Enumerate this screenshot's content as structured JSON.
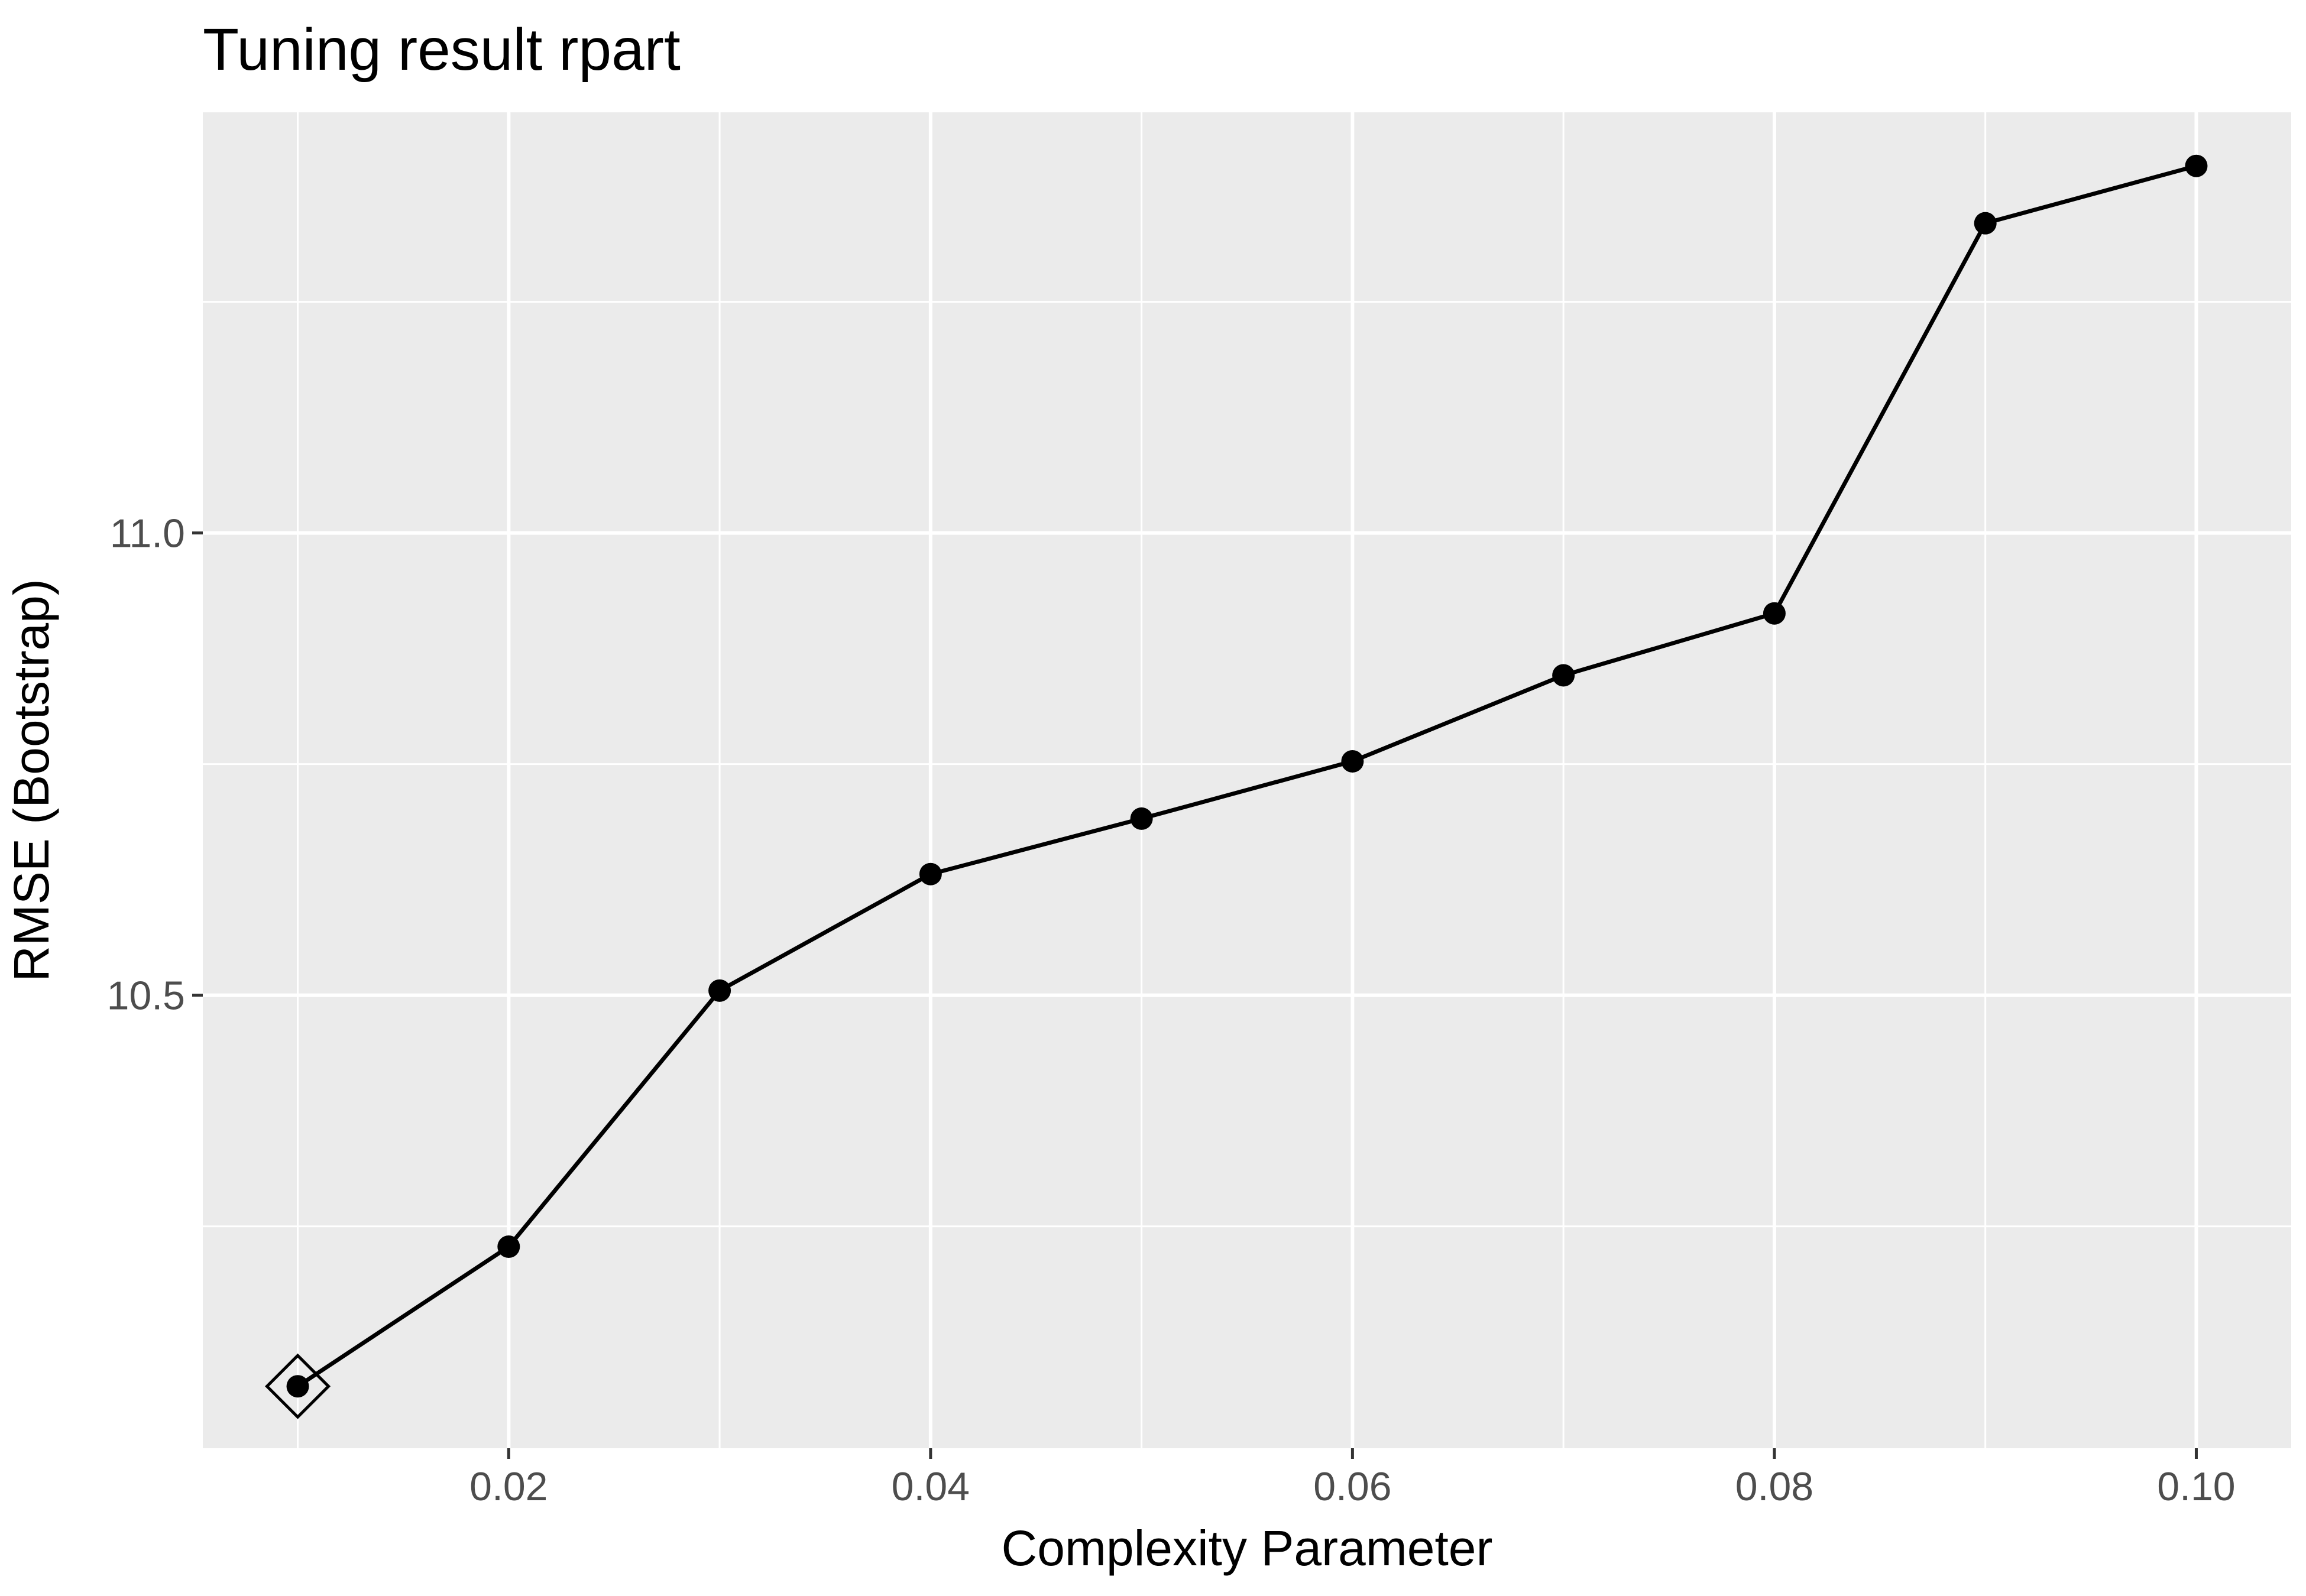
{
  "chart_data": {
    "type": "line",
    "title": "Tuning result rpart",
    "xlabel": "Complexity Parameter",
    "ylabel": "RMSE (Bootstrap)",
    "x": [
      0.01,
      0.02,
      0.03,
      0.04,
      0.05,
      0.06,
      0.07,
      0.08,
      0.09,
      0.1
    ],
    "series": [
      {
        "values": [
          10.077,
          10.228,
          10.505,
          10.631,
          10.691,
          10.753,
          10.846,
          10.913,
          11.335,
          11.397
        ]
      }
    ],
    "best_point": {
      "x": 0.01,
      "y": 10.077,
      "marker": "diamond"
    },
    "xlim": [
      0.0055,
      0.1045
    ],
    "ylim": [
      10.01,
      11.455
    ],
    "x_ticks": [
      0.02,
      0.04,
      0.06,
      0.08,
      0.1
    ],
    "x_tick_labels": [
      "0.02",
      "0.04",
      "0.06",
      "0.08",
      "0.10"
    ],
    "x_minor_ticks": [
      0.01,
      0.03,
      0.05,
      0.07,
      0.09
    ],
    "y_ticks": [
      10.5,
      11.0
    ],
    "y_tick_labels": [
      "10.5",
      "11.0"
    ],
    "y_minor_ticks": [
      10.25,
      10.75,
      11.25
    ],
    "grid": true,
    "legend": "none",
    "colors": {
      "panel_background": "#ebebeb",
      "grid_line": "#ffffff",
      "series_line": "#000000",
      "tick_label": "#4d4d4d",
      "tick_mark": "#333333"
    }
  }
}
